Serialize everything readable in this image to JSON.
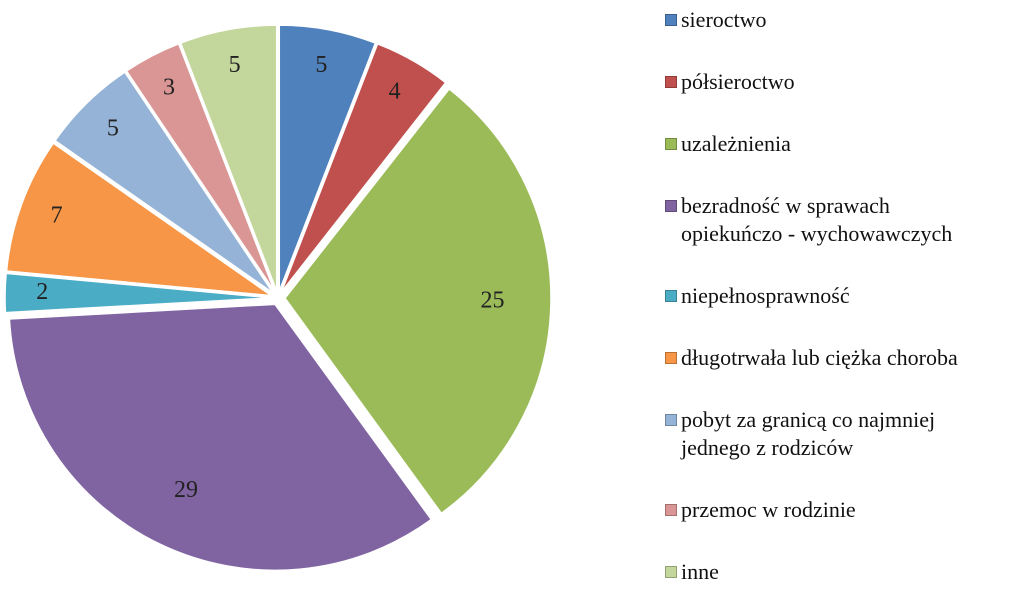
{
  "chart_data": {
    "type": "pie",
    "categories": [
      "sieroctwo",
      "półsieroctwo",
      "uzależnienia",
      "bezradność w sprawach\nopiekuńczo - wychowawczych",
      "niepełnosprawność",
      "długotrwała lub ciężka choroba",
      "pobyt za granicą co najmniej\njednego z rodziców",
      "przemoc w rodzinie",
      "inne"
    ],
    "values": [
      5,
      4,
      25,
      29,
      2,
      7,
      5,
      3,
      5
    ],
    "colors": [
      "#4f81bd",
      "#c0504d",
      "#9bbb59",
      "#8064a2",
      "#4bacc6",
      "#f79646",
      "#95b3d7",
      "#d99694",
      "#c3d69b"
    ],
    "legend": "right"
  }
}
